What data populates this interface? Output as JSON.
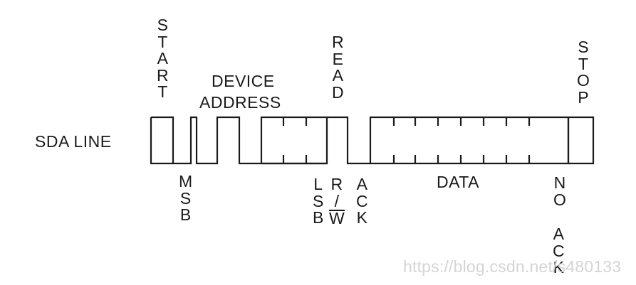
{
  "labels": {
    "start": "START",
    "device_address_line1": "DEVICE",
    "device_address_line2": "ADDRESS",
    "read": "READ",
    "stop": "STOP",
    "sda_line": "SDA LINE",
    "msb": "MSB",
    "lsb": "LSB",
    "rw_r": "R",
    "rw_slash": "/",
    "rw_w": "W",
    "ack": "ACK",
    "data": "DATA",
    "no": "NO",
    "no_ack": "ACK"
  },
  "watermark": "https://blog.csdn.net/s480133",
  "colors": {
    "line": "#1a1a1a",
    "text": "#1a1a1a",
    "watermark": "#d4d4d4"
  }
}
